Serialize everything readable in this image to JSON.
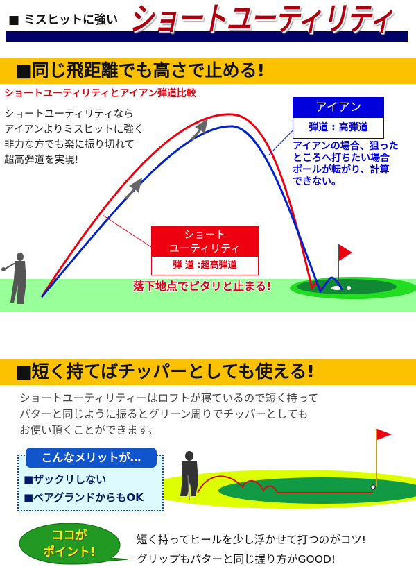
{
  "header": {
    "prefix": "■ ミスヒットに強い",
    "title": "ショートユーティリティ"
  },
  "section1": {
    "banner": "■同じ飛距離でも高さで止める!",
    "subtitle": "ショートユーティリティとアイアン弾道比較",
    "description": [
      "ショートユーティリティなら",
      "アイアンよりミスヒットに強く",
      "非力な方でも楽に振り切れて",
      "超高弾道を実現!"
    ],
    "iron_box": {
      "title": "アイアン",
      "trajectory": "弾道 : 高弾道"
    },
    "iron_note": [
      "アイアンの場合、狙った",
      "ところへ打ちたい場合",
      "ボールが転がり、計算",
      "できない。"
    ],
    "utility_box": {
      "title_lines": [
        "ショート",
        "ユーティリティ"
      ],
      "trajectory": "弾 道 :超高弾道"
    },
    "landing_text": "落下地点でピタリと止まる!",
    "colors": {
      "utility": "#ee0010",
      "iron": "#0022cc",
      "banner": "#fcc200",
      "ground": "#99ff99"
    }
  },
  "section2": {
    "banner": "■短く持てばチッパーとしても使える!",
    "description": [
      "ショートユーティリティーはロフトが寝ているので短く持って",
      "パターと同じように振るとグリーン周りでチッパーとしても",
      "お使い頂くことができます。"
    ],
    "merit_title": "こんなメリットが…",
    "merits": [
      "■ザックリしない",
      "■ベアグランドからもOK"
    ],
    "point_bubble": [
      "ココが",
      "ポイント!"
    ],
    "point_text": [
      "短く持ってヒールを少し浮かせて打つのがコツ!",
      "グリップもパターと同じ握り方がGOOD!"
    ]
  }
}
